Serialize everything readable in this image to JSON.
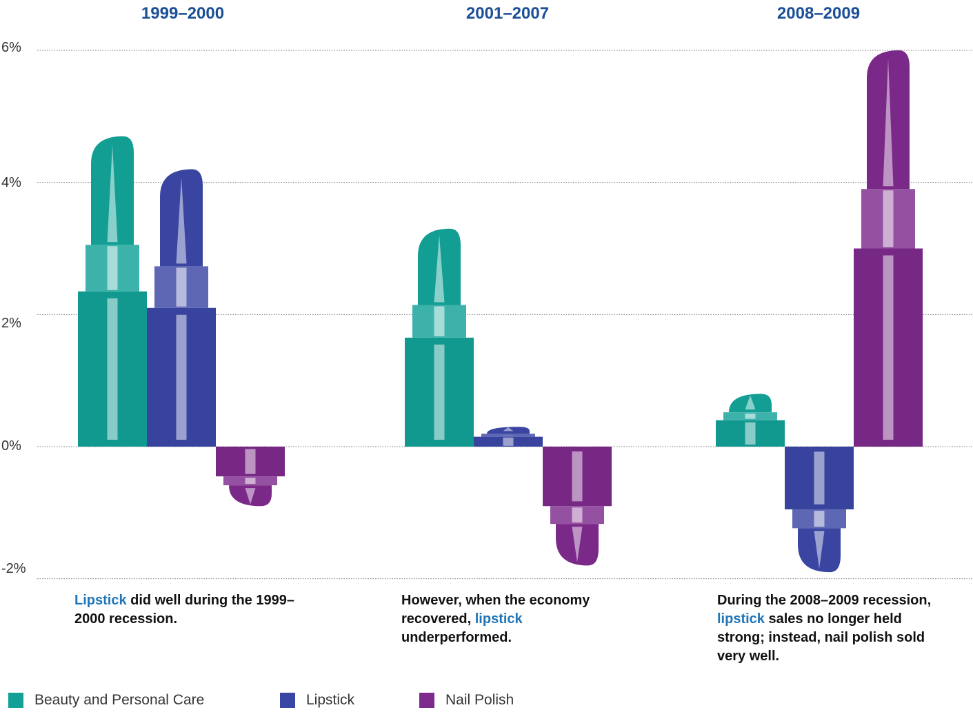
{
  "chart_data": {
    "type": "bar",
    "categories": [
      "1999–2000",
      "2001–2007",
      "2008–2009"
    ],
    "series": [
      {
        "name": "Beauty and Personal Care",
        "color": "#13a197",
        "values": [
          4.7,
          3.3,
          0.8
        ]
      },
      {
        "name": "Lipstick",
        "color": "#3a46a4",
        "values": [
          4.2,
          0.3,
          -1.9
        ]
      },
      {
        "name": "Nail Polish",
        "color": "#7d2a8c",
        "values": [
          -0.9,
          -1.8,
          6.0
        ]
      }
    ],
    "y_ticks": [
      "6%",
      "4%",
      "2%",
      "0%",
      "-2%"
    ],
    "y_tick_values": [
      6,
      4,
      2,
      0,
      -2
    ],
    "ylim": [
      -2,
      6
    ],
    "grid": true,
    "legend_position": "bottom-left"
  },
  "period_titles": [
    "1999–2000",
    "2001–2007",
    "2008–2009"
  ],
  "captions": [
    {
      "pre": "",
      "highlight": "Lipstick",
      "post": " did well during the 1999–2000 recession."
    },
    {
      "pre": "However, when the economy recovered, ",
      "highlight": "lipstick",
      "post": " underperformed."
    },
    {
      "pre": "During the 2008–2009 recession, ",
      "highlight": "lipstick",
      "post": " sales no longer held strong; instead, nail polish sold very well."
    }
  ],
  "legend": [
    {
      "label": "Beauty and Personal Care",
      "color": "#13a197"
    },
    {
      "label": "Lipstick",
      "color": "#3a46a4"
    },
    {
      "label": "Nail Polish",
      "color": "#7d2a8c"
    }
  ]
}
